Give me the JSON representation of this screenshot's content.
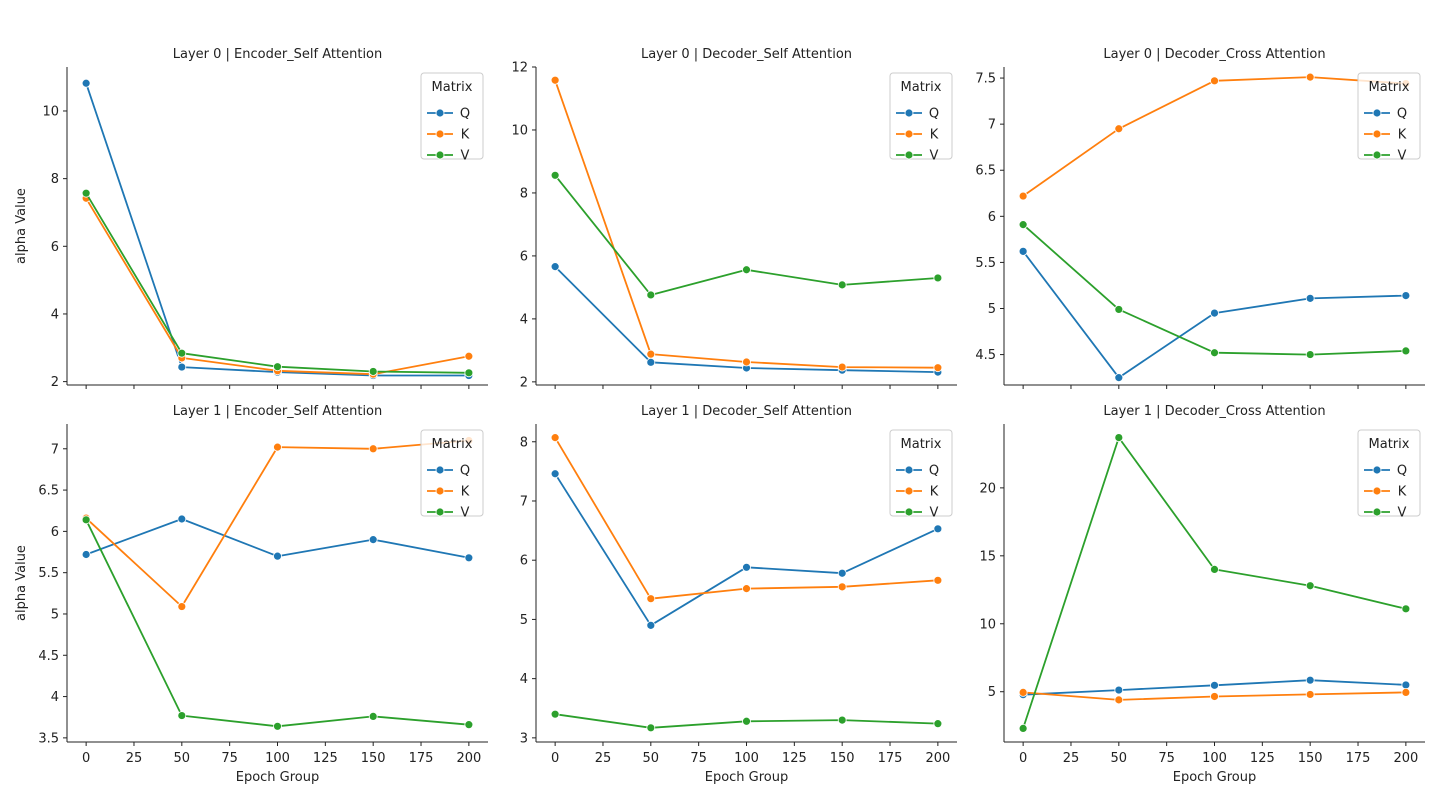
{
  "figure": {
    "shared_xlabel": "Epoch Group",
    "shared_ylabel": "alpha Value"
  },
  "legend_title": "Matrix",
  "series_colors": {
    "Q": "#1f77b4",
    "K": "#ff7f0e",
    "V": "#2ca02c"
  },
  "chart_data": [
    {
      "type": "line",
      "title": "Layer 0 | Encoder_Self Attention",
      "x": [
        0,
        50,
        100,
        150,
        200
      ],
      "xlim": [
        -10,
        210
      ],
      "ylim": [
        1.9,
        11.3
      ],
      "yticks": [
        2,
        4,
        6,
        8,
        10
      ],
      "xticks": [
        0,
        25,
        50,
        75,
        100,
        125,
        150,
        175,
        200
      ],
      "ylabel": "alpha Value",
      "xlabel": "",
      "series": [
        {
          "name": "Q",
          "values": [
            10.82,
            2.43,
            2.28,
            2.18,
            2.18
          ]
        },
        {
          "name": "K",
          "values": [
            7.42,
            2.7,
            2.32,
            2.22,
            2.75
          ]
        },
        {
          "name": "V",
          "values": [
            7.57,
            2.84,
            2.44,
            2.3,
            2.26
          ]
        }
      ],
      "legend_loc": "upper right"
    },
    {
      "type": "line",
      "title": "Layer 0 | Decoder_Self Attention",
      "x": [
        0,
        50,
        100,
        150,
        200
      ],
      "xlim": [
        -10,
        210
      ],
      "ylim": [
        1.9,
        12.0
      ],
      "yticks": [
        2,
        4,
        6,
        8,
        10,
        12
      ],
      "xticks": [
        0,
        25,
        50,
        75,
        100,
        125,
        150,
        175,
        200
      ],
      "ylabel": "",
      "xlabel": "",
      "series": [
        {
          "name": "Q",
          "values": [
            5.66,
            2.62,
            2.44,
            2.37,
            2.31
          ]
        },
        {
          "name": "K",
          "values": [
            11.58,
            2.88,
            2.63,
            2.47,
            2.45
          ]
        },
        {
          "name": "V",
          "values": [
            8.56,
            4.76,
            5.56,
            5.08,
            5.3
          ]
        }
      ],
      "legend_loc": "upper right"
    },
    {
      "type": "line",
      "title": "Layer 0 | Decoder_Cross Attention",
      "x": [
        0,
        50,
        100,
        150,
        200
      ],
      "xlim": [
        -10,
        210
      ],
      "ylim": [
        4.17,
        7.62
      ],
      "yticks": [
        4.5,
        5.0,
        5.5,
        6.0,
        6.5,
        7.0,
        7.5
      ],
      "xticks": [
        0,
        25,
        50,
        75,
        100,
        125,
        150,
        175,
        200
      ],
      "ylabel": "",
      "xlabel": "",
      "series": [
        {
          "name": "Q",
          "values": [
            5.62,
            4.25,
            4.95,
            5.11,
            5.14
          ]
        },
        {
          "name": "K",
          "values": [
            6.22,
            6.95,
            7.47,
            7.51,
            7.44
          ]
        },
        {
          "name": "V",
          "values": [
            5.91,
            4.99,
            4.52,
            4.5,
            4.54
          ]
        }
      ],
      "legend_loc": "upper right"
    },
    {
      "type": "line",
      "title": "Layer 1 | Encoder_Self Attention",
      "x": [
        0,
        50,
        100,
        150,
        200
      ],
      "xlim": [
        -10,
        210
      ],
      "ylim": [
        3.45,
        7.3
      ],
      "yticks": [
        3.5,
        4.0,
        4.5,
        5.0,
        5.5,
        6.0,
        6.5,
        7.0
      ],
      "xticks": [
        0,
        25,
        50,
        75,
        100,
        125,
        150,
        175,
        200
      ],
      "ylabel": "alpha Value",
      "xlabel": "Epoch Group",
      "series": [
        {
          "name": "Q",
          "values": [
            5.72,
            6.15,
            5.7,
            5.9,
            5.68
          ]
        },
        {
          "name": "K",
          "values": [
            6.16,
            5.09,
            7.02,
            7.0,
            7.1
          ]
        },
        {
          "name": "V",
          "values": [
            6.14,
            3.77,
            3.64,
            3.76,
            3.66
          ]
        }
      ],
      "legend_loc": "upper right"
    },
    {
      "type": "line",
      "title": "Layer 1 | Decoder_Self Attention",
      "x": [
        0,
        50,
        100,
        150,
        200
      ],
      "xlim": [
        -10,
        210
      ],
      "ylim": [
        2.93,
        8.3
      ],
      "yticks": [
        3,
        4,
        5,
        6,
        7,
        8
      ],
      "xticks": [
        0,
        25,
        50,
        75,
        100,
        125,
        150,
        175,
        200
      ],
      "ylabel": "",
      "xlabel": "Epoch Group",
      "series": [
        {
          "name": "Q",
          "values": [
            7.46,
            4.9,
            5.88,
            5.78,
            6.53
          ]
        },
        {
          "name": "K",
          "values": [
            8.07,
            5.35,
            5.52,
            5.55,
            5.66
          ]
        },
        {
          "name": "V",
          "values": [
            3.4,
            3.17,
            3.28,
            3.3,
            3.24
          ]
        }
      ],
      "legend_loc": "upper right"
    },
    {
      "type": "line",
      "title": "Layer 1 | Decoder_Cross Attention",
      "x": [
        0,
        50,
        100,
        150,
        200
      ],
      "xlim": [
        -10,
        210
      ],
      "ylim": [
        1.3,
        24.7
      ],
      "yticks": [
        5,
        10,
        15,
        20
      ],
      "xticks": [
        0,
        25,
        50,
        75,
        100,
        125,
        150,
        175,
        200
      ],
      "ylabel": "",
      "xlabel": "Epoch Group",
      "series": [
        {
          "name": "Q",
          "values": [
            4.78,
            5.12,
            5.47,
            5.85,
            5.5
          ]
        },
        {
          "name": "K",
          "values": [
            4.95,
            4.4,
            4.65,
            4.8,
            4.95
          ]
        },
        {
          "name": "V",
          "values": [
            2.3,
            23.7,
            14.0,
            12.8,
            11.1
          ]
        }
      ],
      "legend_loc": "upper right"
    }
  ]
}
